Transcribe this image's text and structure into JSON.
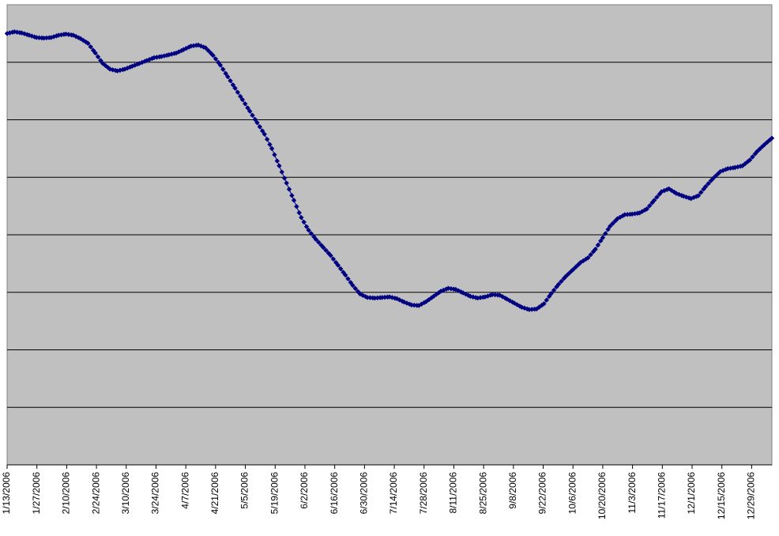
{
  "chart_data": {
    "type": "line",
    "title": "",
    "xlabel": "",
    "ylabel": "",
    "grid": true,
    "legend": "none",
    "plot_background": "#c0c0c0",
    "series_color": "#000080",
    "marker": "diamond",
    "x_tick_labels": [
      "1/13/2006",
      "1/27/2006",
      "2/10/2006",
      "2/24/2006",
      "3/10/2006",
      "3/24/2006",
      "4/7/2006",
      "4/21/2006",
      "5/5/2006",
      "5/19/2006",
      "6/2/2006",
      "6/16/2006",
      "6/30/2006",
      "7/14/2006",
      "7/28/2006",
      "8/11/2006",
      "8/25/2006",
      "9/8/2006",
      "9/22/2006",
      "10/6/2006",
      "10/20/2006",
      "11/3/2006",
      "11/17/2006",
      "12/1/2006",
      "12/15/2006",
      "12/29/2006"
    ],
    "y_gridlines": 7,
    "ylim": [
      0,
      8
    ],
    "series": [
      {
        "values": [
          [
            0,
            7.5
          ],
          [
            2,
            7.53
          ],
          [
            4,
            7.51
          ],
          [
            6,
            7.47
          ],
          [
            8,
            7.43
          ],
          [
            10,
            7.42
          ],
          [
            12,
            7.43
          ],
          [
            14,
            7.47
          ],
          [
            16,
            7.49
          ],
          [
            18,
            7.47
          ],
          [
            20,
            7.41
          ],
          [
            22,
            7.33
          ],
          [
            24,
            7.16
          ],
          [
            26,
            6.98
          ],
          [
            28,
            6.88
          ],
          [
            30,
            6.85
          ],
          [
            32,
            6.88
          ],
          [
            34,
            6.93
          ],
          [
            36,
            6.98
          ],
          [
            38,
            7.03
          ],
          [
            40,
            7.08
          ],
          [
            42,
            7.1
          ],
          [
            44,
            7.13
          ],
          [
            46,
            7.16
          ],
          [
            48,
            7.22
          ],
          [
            50,
            7.28
          ],
          [
            52,
            7.3
          ],
          [
            54,
            7.25
          ],
          [
            56,
            7.12
          ],
          [
            58,
            6.95
          ],
          [
            60,
            6.75
          ],
          [
            62,
            6.55
          ],
          [
            64,
            6.35
          ],
          [
            66,
            6.15
          ],
          [
            68,
            5.95
          ],
          [
            70,
            5.75
          ],
          [
            72,
            5.5
          ],
          [
            74,
            5.2
          ],
          [
            76,
            4.9
          ],
          [
            78,
            4.6
          ],
          [
            80,
            4.3
          ],
          [
            82,
            4.08
          ],
          [
            84,
            3.92
          ],
          [
            86,
            3.78
          ],
          [
            88,
            3.64
          ],
          [
            90,
            3.47
          ],
          [
            92,
            3.3
          ],
          [
            94,
            3.12
          ],
          [
            96,
            2.97
          ],
          [
            98,
            2.91
          ],
          [
            100,
            2.9
          ],
          [
            102,
            2.91
          ],
          [
            104,
            2.92
          ],
          [
            106,
            2.89
          ],
          [
            108,
            2.83
          ],
          [
            110,
            2.78
          ],
          [
            112,
            2.77
          ],
          [
            114,
            2.84
          ],
          [
            116,
            2.93
          ],
          [
            118,
            3.02
          ],
          [
            120,
            3.07
          ],
          [
            122,
            3.05
          ],
          [
            124,
            2.99
          ],
          [
            126,
            2.93
          ],
          [
            128,
            2.9
          ],
          [
            130,
            2.92
          ],
          [
            132,
            2.96
          ],
          [
            134,
            2.95
          ],
          [
            136,
            2.88
          ],
          [
            138,
            2.81
          ],
          [
            140,
            2.74
          ],
          [
            142,
            2.7
          ],
          [
            144,
            2.71
          ],
          [
            146,
            2.8
          ],
          [
            148,
            2.98
          ],
          [
            150,
            3.14
          ],
          [
            152,
            3.28
          ],
          [
            154,
            3.4
          ],
          [
            156,
            3.52
          ],
          [
            158,
            3.6
          ],
          [
            160,
            3.75
          ],
          [
            162,
            3.95
          ],
          [
            164,
            4.15
          ],
          [
            166,
            4.28
          ],
          [
            168,
            4.35
          ],
          [
            170,
            4.36
          ],
          [
            172,
            4.38
          ],
          [
            174,
            4.45
          ],
          [
            176,
            4.6
          ],
          [
            178,
            4.75
          ],
          [
            180,
            4.8
          ],
          [
            182,
            4.72
          ],
          [
            184,
            4.67
          ],
          [
            186,
            4.63
          ],
          [
            188,
            4.68
          ],
          [
            190,
            4.84
          ],
          [
            192,
            4.98
          ],
          [
            194,
            5.1
          ],
          [
            196,
            5.15
          ],
          [
            198,
            5.17
          ],
          [
            200,
            5.2
          ],
          [
            202,
            5.3
          ],
          [
            204,
            5.45
          ],
          [
            206,
            5.57
          ],
          [
            208,
            5.68
          ]
        ]
      }
    ]
  }
}
